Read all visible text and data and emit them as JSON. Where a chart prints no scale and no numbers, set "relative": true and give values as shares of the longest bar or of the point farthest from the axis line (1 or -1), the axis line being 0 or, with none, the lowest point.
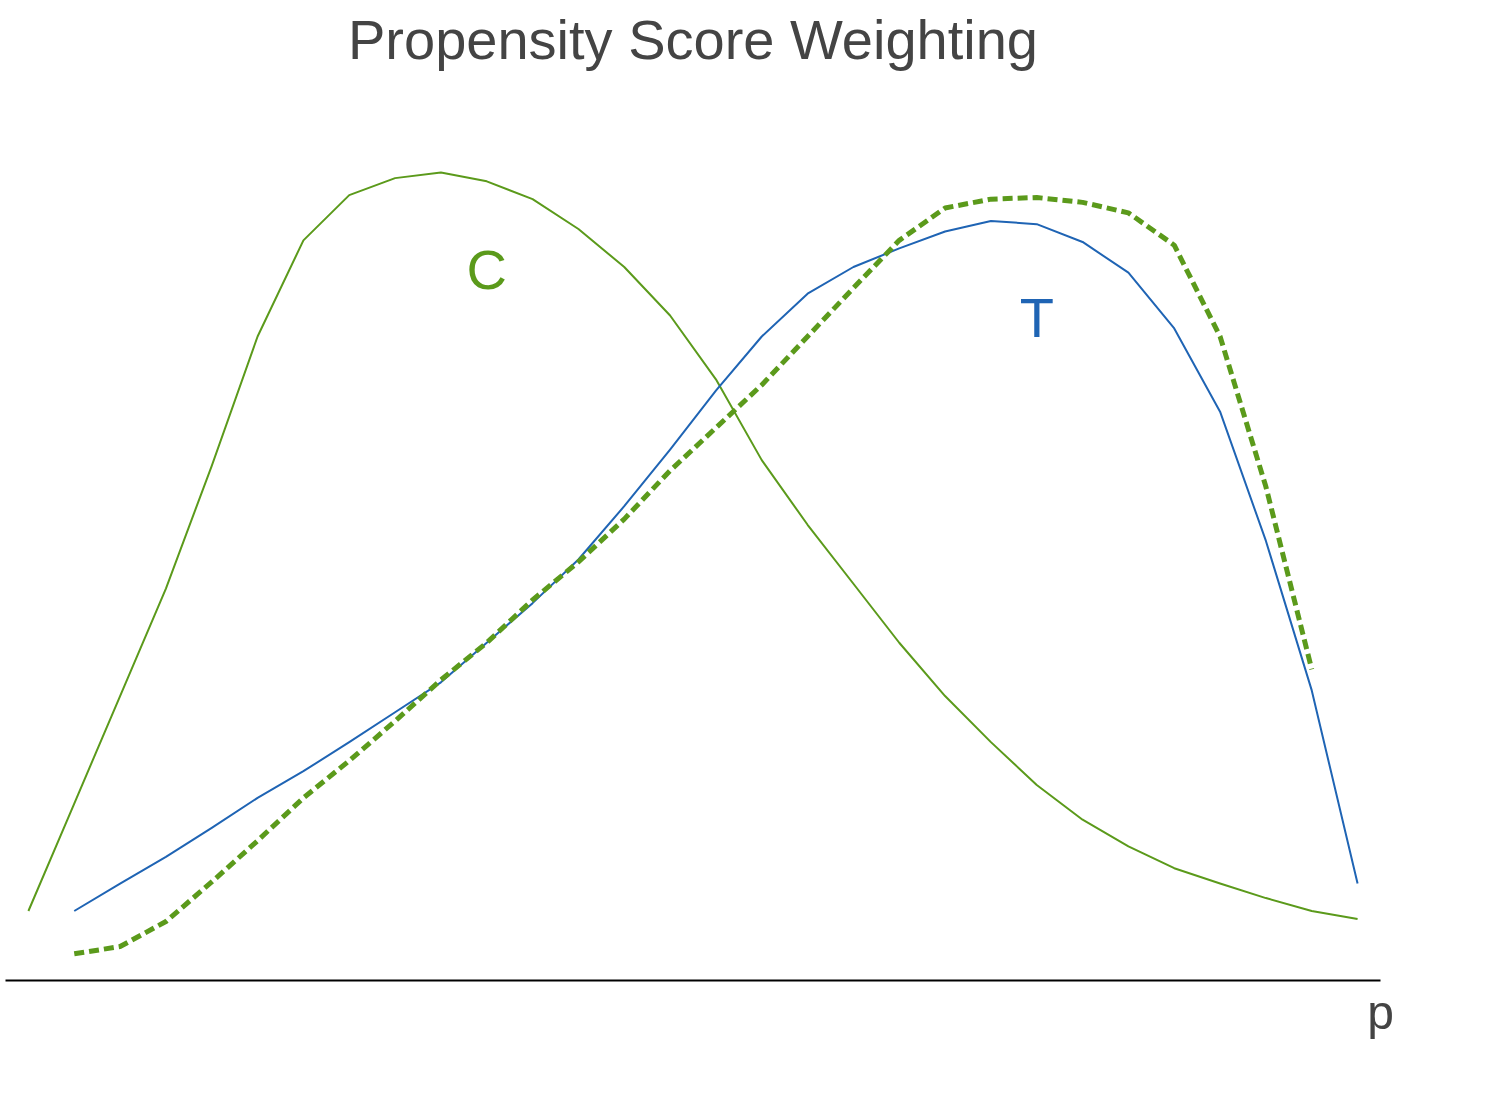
{
  "chart_data": {
    "type": "line",
    "title": "Propensity Score Weighting",
    "xlabel": "p",
    "relative": true,
    "categories": [
      null,
      null,
      null,
      null,
      null,
      null,
      null,
      null,
      null,
      null,
      null,
      null,
      null,
      null,
      null,
      null,
      null,
      null,
      null,
      null,
      null,
      null,
      null,
      null,
      null,
      null,
      null,
      null,
      null,
      null
    ],
    "series": [
      {
        "name": "C",
        "color": "#5b9a1b",
        "line_style": "solid",
        "values": [
          0.086,
          0.219,
          0.352,
          0.485,
          0.637,
          0.797,
          0.916,
          0.972,
          0.993,
          1.0,
          0.989,
          0.967,
          0.93,
          0.883,
          0.823,
          0.744,
          0.644,
          0.564,
          0.491,
          0.418,
          0.352,
          0.295,
          0.242,
          0.199,
          0.166,
          0.139,
          0.12,
          0.102,
          0.086,
          0.076
        ]
      },
      {
        "name": "T",
        "color": "#1f64b4",
        "line_style": "solid",
        "values": [
          null,
          0.086,
          0.12,
          0.153,
          0.189,
          0.226,
          0.259,
          0.295,
          0.332,
          0.369,
          0.418,
          0.467,
          0.521,
          0.587,
          0.657,
          0.73,
          0.797,
          0.85,
          0.883,
          0.906,
          0.927,
          0.94,
          0.936,
          0.914,
          0.876,
          0.807,
          0.704,
          0.544,
          0.359,
          0.12
        ]
      },
      {
        "color": "#5b9a1b",
        "line_style": "dashed",
        "values": [
          null,
          0.033,
          0.042,
          0.073,
          0.122,
          0.173,
          0.226,
          0.272,
          0.321,
          0.372,
          0.418,
          0.471,
          0.518,
          0.571,
          0.631,
          0.684,
          0.737,
          0.797,
          0.857,
          0.916,
          0.956,
          0.967,
          0.969,
          0.963,
          0.95,
          0.91,
          0.797,
          0.611,
          0.385,
          null
        ]
      }
    ]
  }
}
